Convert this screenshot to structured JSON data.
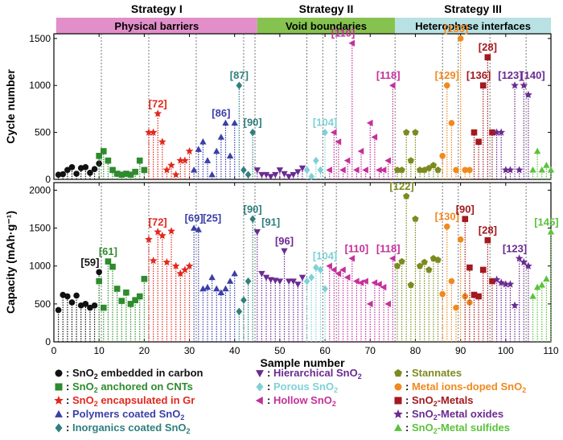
{
  "chart_data": {
    "type": "scatter",
    "xlabel": "Sample number",
    "xlim": [
      0,
      110
    ],
    "xticks": [
      "0",
      "10",
      "20",
      "30",
      "40",
      "50",
      "60",
      "70",
      "80",
      "90",
      "100",
      "110"
    ],
    "strategies": [
      {
        "title": "Strategy I",
        "band": "Physical barriers",
        "color": "#e18ec9",
        "x_range": [
          0.5,
          45
        ]
      },
      {
        "title": "Strategy II",
        "band": "Void boundaries",
        "color": "#86c24f",
        "x_range": [
          45,
          75.5
        ]
      },
      {
        "title": "Strategy III",
        "band": "Heterophase interfaces",
        "color": "#b7e1e3",
        "x_range": [
          75.5,
          110
        ]
      }
    ],
    "dividers": [
      10.5,
      21,
      31.5,
      42,
      44.5,
      56,
      59.5,
      62.5,
      75.5,
      86,
      89.5,
      96.5,
      104.5
    ],
    "categories": [
      {
        "key": "carbon",
        "color": "#111111",
        "marker": "circle",
        "label": {
          "pre": "SnO",
          "sub": "2",
          "post": " embedded in carbon"
        }
      },
      {
        "key": "cnt",
        "color": "#2e8b2e",
        "marker": "square",
        "label": {
          "pre": "SnO",
          "sub": "2",
          "post": " anchored on CNTs"
        }
      },
      {
        "key": "gr",
        "color": "#e0291f",
        "marker": "star",
        "label": {
          "pre": "SnO",
          "sub": "2",
          "post": " encapsulated in Gr"
        }
      },
      {
        "key": "polymer",
        "color": "#3b3fa8",
        "marker": "triangle-up",
        "label": {
          "pre": "Polymers coated SnO",
          "sub": "2",
          "post": ""
        }
      },
      {
        "key": "inorg",
        "color": "#2f7f7d",
        "marker": "diamond",
        "label": {
          "pre": "Inorganics coated SnO",
          "sub": "2",
          "post": ""
        }
      },
      {
        "key": "hier",
        "color": "#6a2b91",
        "marker": "triangle-down",
        "label": {
          "pre": "Hierarchical SnO",
          "sub": "2",
          "post": ""
        }
      },
      {
        "key": "porous",
        "color": "#7fd1d6",
        "marker": "diamond",
        "label": {
          "pre": "Porous SnO",
          "sub": "2",
          "post": ""
        }
      },
      {
        "key": "hollow",
        "color": "#c4309a",
        "marker": "triangle-left",
        "label": {
          "pre": "Hollow SnO",
          "sub": "2",
          "post": ""
        }
      },
      {
        "key": "stannate",
        "color": "#7d8a1f",
        "marker": "pentagon",
        "label": {
          "pre": "Stannates",
          "sub": "",
          "post": ""
        }
      },
      {
        "key": "ions",
        "color": "#ef8a1f",
        "marker": "circle",
        "label": {
          "pre": "Metal ions-doped SnO",
          "sub": "2",
          "post": ""
        }
      },
      {
        "key": "metals",
        "color": "#a3191e",
        "marker": "square",
        "label": {
          "pre": "SnO",
          "sub": "2",
          "post": "-Metals"
        }
      },
      {
        "key": "oxides",
        "color": "#6a2b91",
        "marker": "star",
        "label": {
          "pre": "SnO",
          "sub": "2",
          "post": "-Metal oxides"
        }
      },
      {
        "key": "sulfides",
        "color": "#5bc23c",
        "marker": "triangle-up",
        "label": {
          "pre": "SnO",
          "sub": "2",
          "post": "-Metal sulfides"
        }
      }
    ],
    "panels": [
      {
        "key": "cycle",
        "ylabel": "Cycle number",
        "ylim": [
          0,
          1550
        ],
        "yticks": [
          0,
          500,
          1000,
          1500
        ],
        "series": [
          {
            "cat": "carbon",
            "x": [
              1,
              2,
              3,
              4,
              5,
              6,
              7,
              8,
              9,
              10
            ],
            "y": [
              50,
              55,
              100,
              130,
              60,
              120,
              130,
              70,
              110,
              170
            ]
          },
          {
            "cat": "cnt",
            "x": [
              10,
              11,
              12,
              13,
              14,
              15,
              16,
              17,
              18,
              19,
              20
            ],
            "y": [
              250,
              300,
              200,
              100,
              60,
              50,
              60,
              50,
              80,
              200,
              100
            ]
          },
          {
            "cat": "gr",
            "x": [
              21,
              22,
              23,
              24,
              25,
              26,
              27,
              28,
              29,
              30
            ],
            "y": [
              500,
              500,
              700,
              400,
              100,
              150,
              50,
              200,
              200,
              300
            ]
          },
          {
            "cat": "polymer",
            "x": [
              31,
              32,
              33,
              34,
              35,
              36,
              37,
              38,
              39,
              40
            ],
            "y": [
              100,
              320,
              400,
              200,
              50,
              300,
              450,
              600,
              250,
              600
            ]
          },
          {
            "cat": "inorg",
            "x": [
              41,
              42,
              43,
              44
            ],
            "y": [
              1000,
              100,
              50,
              500
            ]
          },
          {
            "cat": "hier",
            "x": [
              45,
              46,
              47,
              48,
              49,
              50,
              51,
              52,
              53,
              54,
              55
            ],
            "y": [
              100,
              50,
              50,
              30,
              50,
              100,
              60,
              30,
              50,
              80,
              120
            ]
          },
          {
            "cat": "porous",
            "x": [
              56,
              57,
              58,
              59,
              60
            ],
            "y": [
              100,
              30,
              200,
              100,
              500
            ]
          },
          {
            "cat": "hollow",
            "x": [
              61,
              62,
              63,
              64,
              65,
              66,
              67,
              68,
              69,
              70,
              71,
              72,
              73,
              74,
              75
            ],
            "y": [
              100,
              500,
              400,
              100,
              200,
              1450,
              100,
              300,
              100,
              600,
              450,
              100,
              100,
              200,
              1000
            ]
          },
          {
            "cat": "stannate",
            "x": [
              76,
              77,
              78,
              79,
              80,
              81,
              82,
              83,
              84,
              85
            ],
            "y": [
              100,
              100,
              500,
              200,
              500,
              100,
              100,
              120,
              150,
              100
            ]
          },
          {
            "cat": "ions",
            "x": [
              86,
              87,
              88,
              89,
              90,
              91,
              92
            ],
            "y": [
              250,
              1000,
              600,
              100,
              1500,
              100,
              100
            ]
          },
          {
            "cat": "metals",
            "x": [
              93,
              94,
              95,
              96,
              97
            ],
            "y": [
              500,
              400,
              1000,
              1300,
              500
            ]
          },
          {
            "cat": "oxides",
            "x": [
              98,
              99,
              100,
              101,
              102,
              103,
              104,
              105
            ],
            "y": [
              500,
              500,
              100,
              100,
              1000,
              100,
              1000,
              900
            ]
          },
          {
            "cat": "sulfides",
            "x": [
              106,
              107,
              108,
              109,
              110
            ],
            "y": [
              100,
              300,
              100,
              150,
              100
            ]
          }
        ],
        "refs": [
          {
            "text": "[72]",
            "x": 23,
            "y": 700,
            "cat": "gr"
          },
          {
            "text": "[86]",
            "x": 37,
            "y": 600,
            "cat": "polymer"
          },
          {
            "text": "[87]",
            "x": 41,
            "y": 1000,
            "cat": "inorg"
          },
          {
            "text": "[90]",
            "x": 44,
            "y": 500,
            "cat": "inorg"
          },
          {
            "text": "[104]",
            "x": 60,
            "y": 500,
            "cat": "porous"
          },
          {
            "text": "[110]",
            "x": 64,
            "y": 1450,
            "cat": "hollow"
          },
          {
            "text": "[118]",
            "x": 74,
            "y": 1000,
            "cat": "hollow"
          },
          {
            "text": "[133]",
            "x": 89,
            "y": 1500,
            "cat": "ions"
          },
          {
            "text": "[129]",
            "x": 87,
            "y": 1000,
            "cat": "ions"
          },
          {
            "text": "[28]",
            "x": 96,
            "y": 1300,
            "cat": "metals"
          },
          {
            "text": "[136]",
            "x": 94,
            "y": 1000,
            "cat": "metals"
          },
          {
            "text": "[123]",
            "x": 101,
            "y": 1000,
            "cat": "oxides"
          },
          {
            "text": "[140]",
            "x": 106,
            "y": 1000,
            "cat": "oxides"
          }
        ]
      },
      {
        "key": "capacity",
        "ylabel": "Capacity (mAh·g⁻¹)",
        "ylim": [
          0,
          2100
        ],
        "yticks": [
          0,
          500,
          1000,
          1500,
          2000
        ],
        "series": [
          {
            "cat": "carbon",
            "x": [
              1,
              2,
              3,
              4,
              5,
              6,
              7,
              8,
              9,
              10
            ],
            "y": [
              420,
              620,
              600,
              520,
              610,
              480,
              500,
              450,
              480,
              920
            ]
          },
          {
            "cat": "cnt",
            "x": [
              10,
              11,
              12,
              13,
              14,
              15,
              16,
              17,
              18,
              19,
              20
            ],
            "y": [
              800,
              450,
              1060,
              990,
              700,
              540,
              650,
              500,
              550,
              600,
              830
            ]
          },
          {
            "cat": "gr",
            "x": [
              21,
              22,
              23,
              24,
              25,
              26,
              27,
              28,
              29,
              30
            ],
            "y": [
              1350,
              1070,
              1450,
              1400,
              1050,
              1460,
              1000,
              900,
              950,
              1000
            ]
          },
          {
            "cat": "polymer",
            "x": [
              31,
              32,
              33,
              34,
              35,
              36,
              37,
              38,
              39,
              40
            ],
            "y": [
              1500,
              1480,
              700,
              720,
              850,
              700,
              650,
              700,
              800,
              900
            ]
          },
          {
            "cat": "inorg",
            "x": [
              41,
              42,
              43,
              44
            ],
            "y": [
              400,
              550,
              800,
              1620
            ]
          },
          {
            "cat": "hier",
            "x": [
              45,
              46,
              47,
              48,
              49,
              50,
              51,
              52,
              53,
              54,
              55
            ],
            "y": [
              1450,
              900,
              850,
              820,
              810,
              800,
              1200,
              800,
              800,
              760,
              850
            ]
          },
          {
            "cat": "porous",
            "x": [
              56,
              57,
              58,
              59,
              60
            ],
            "y": [
              800,
              850,
              980,
              950,
              700
            ]
          },
          {
            "cat": "hollow",
            "x": [
              61,
              62,
              63,
              64,
              65,
              66,
              67,
              68,
              69,
              70,
              71,
              72,
              73,
              74,
              75
            ],
            "y": [
              1000,
              950,
              900,
              950,
              850,
              1100,
              800,
              780,
              800,
              500,
              780,
              760,
              720,
              500,
              1100
            ]
          },
          {
            "cat": "stannate",
            "x": [
              76,
              77,
              78,
              79,
              80,
              81,
              82,
              83,
              84,
              85
            ],
            "y": [
              1000,
              1060,
              1920,
              750,
              1620,
              1000,
              1050,
              950,
              1100,
              1080
            ]
          },
          {
            "cat": "ions",
            "x": [
              86,
              87,
              88,
              89,
              90,
              91,
              92
            ],
            "y": [
              630,
              1520,
              800,
              450,
              1350,
              600,
              520
            ]
          },
          {
            "cat": "metals",
            "x": [
              91,
              92,
              93,
              94,
              95,
              96,
              97
            ],
            "y": [
              1620,
              980,
              620,
              600,
              950,
              1340,
              800
            ]
          },
          {
            "cat": "oxides",
            "x": [
              98,
              99,
              100,
              101,
              102,
              103,
              104,
              105
            ],
            "y": [
              820,
              780,
              760,
              760,
              480,
              1100,
              1050,
              1000
            ]
          },
          {
            "cat": "sulfides",
            "x": [
              106,
              107,
              108,
              109,
              110
            ],
            "y": [
              600,
              720,
              750,
              830,
              1450
            ]
          }
        ],
        "refs": [
          {
            "text": "[59]",
            "x": 8,
            "y": 920,
            "cat": "carbon"
          },
          {
            "text": "[61]",
            "x": 12,
            "y": 1060,
            "cat": "cnt"
          },
          {
            "text": "[72]",
            "x": 23,
            "y": 1450,
            "cat": "gr"
          },
          {
            "text": "[69]",
            "x": 31,
            "y": 1500,
            "cat": "polymer"
          },
          {
            "text": "[25]",
            "x": 35,
            "y": 1500,
            "cat": "polymer"
          },
          {
            "text": "[90]",
            "x": 44,
            "y": 1620,
            "cat": "inorg"
          },
          {
            "text": "[91]",
            "x": 48,
            "y": 1450,
            "cat": "inorg"
          },
          {
            "text": "[96]",
            "x": 51,
            "y": 1200,
            "cat": "hier"
          },
          {
            "text": "[104]",
            "x": 60,
            "y": 1000,
            "cat": "porous"
          },
          {
            "text": "[110]",
            "x": 67,
            "y": 1100,
            "cat": "hollow"
          },
          {
            "text": "[118]",
            "x": 74,
            "y": 1100,
            "cat": "hollow"
          },
          {
            "text": "[122]",
            "x": 77,
            "y": 1920,
            "cat": "stannate"
          },
          {
            "text": "[130]",
            "x": 87,
            "y": 1520,
            "cat": "ions"
          },
          {
            "text": "[90]",
            "x": 91,
            "y": 1620,
            "cat": "metals"
          },
          {
            "text": "[28]",
            "x": 96,
            "y": 1340,
            "cat": "metals"
          },
          {
            "text": "[123]",
            "x": 102,
            "y": 1100,
            "cat": "oxides"
          },
          {
            "text": "[145]",
            "x": 109,
            "y": 1450,
            "cat": "sulfides"
          }
        ]
      }
    ]
  }
}
